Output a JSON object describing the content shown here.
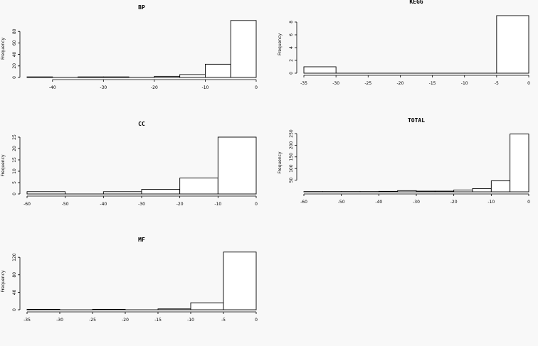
{
  "chart_data": [
    {
      "type": "bar",
      "title": "BP",
      "ylabel": "Frequency",
      "xlabel": "",
      "xlim": [
        -45,
        0
      ],
      "ylim": [
        0,
        100
      ],
      "xticks": [
        -40,
        -30,
        -20,
        -10,
        0
      ],
      "yticks": [
        0,
        20,
        40,
        60,
        80
      ],
      "bins": [
        {
          "from": -45,
          "to": -40,
          "count": 1
        },
        {
          "from": -40,
          "to": -35,
          "count": 0
        },
        {
          "from": -35,
          "to": -30,
          "count": 1
        },
        {
          "from": -30,
          "to": -25,
          "count": 1
        },
        {
          "from": -25,
          "to": -20,
          "count": 0
        },
        {
          "from": -20,
          "to": -15,
          "count": 2
        },
        {
          "from": -15,
          "to": -10,
          "count": 5
        },
        {
          "from": -10,
          "to": -5,
          "count": 23
        },
        {
          "from": -5,
          "to": 0,
          "count": 99
        }
      ]
    },
    {
      "type": "bar",
      "title": "KEGG",
      "ylabel": "Frequency",
      "xlabel": "",
      "xlim": [
        -35,
        0
      ],
      "ylim": [
        0,
        9
      ],
      "xticks": [
        -35,
        -30,
        -25,
        -20,
        -15,
        -10,
        -5,
        0
      ],
      "yticks": [
        0,
        2,
        4,
        6,
        8
      ],
      "bins": [
        {
          "from": -35,
          "to": -30,
          "count": 1
        },
        {
          "from": -30,
          "to": -25,
          "count": 0
        },
        {
          "from": -25,
          "to": -20,
          "count": 0
        },
        {
          "from": -20,
          "to": -15,
          "count": 0
        },
        {
          "from": -15,
          "to": -10,
          "count": 0
        },
        {
          "from": -10,
          "to": -5,
          "count": 0
        },
        {
          "from": -5,
          "to": 0,
          "count": 9
        }
      ]
    },
    {
      "type": "bar",
      "title": "CC",
      "ylabel": "Frequency",
      "xlabel": "",
      "xlim": [
        -60,
        0
      ],
      "ylim": [
        0,
        25
      ],
      "xticks": [
        -60,
        -50,
        -40,
        -30,
        -20,
        -10,
        0
      ],
      "yticks": [
        0,
        5,
        10,
        15,
        20,
        25
      ],
      "bins": [
        {
          "from": -60,
          "to": -50,
          "count": 1
        },
        {
          "from": -50,
          "to": -40,
          "count": 0
        },
        {
          "from": -40,
          "to": -30,
          "count": 1
        },
        {
          "from": -30,
          "to": -20,
          "count": 2
        },
        {
          "from": -20,
          "to": -10,
          "count": 7
        },
        {
          "from": -10,
          "to": 0,
          "count": 25
        }
      ]
    },
    {
      "type": "bar",
      "title": "TOTAL",
      "ylabel": "Frequency",
      "xlabel": "",
      "xlim": [
        -60,
        0
      ],
      "ylim": [
        0,
        250
      ],
      "xticks": [
        -60,
        -50,
        -40,
        -30,
        -20,
        -10,
        0
      ],
      "yticks": [
        50,
        100,
        150,
        200,
        250
      ],
      "bins": [
        {
          "from": -60,
          "to": -55,
          "count": 1
        },
        {
          "from": -55,
          "to": -50,
          "count": 1
        },
        {
          "from": -50,
          "to": -45,
          "count": 1
        },
        {
          "from": -45,
          "to": -40,
          "count": 1
        },
        {
          "from": -40,
          "to": -35,
          "count": 2
        },
        {
          "from": -35,
          "to": -30,
          "count": 5
        },
        {
          "from": -30,
          "to": -25,
          "count": 3
        },
        {
          "from": -25,
          "to": -20,
          "count": 3
        },
        {
          "from": -20,
          "to": -15,
          "count": 8
        },
        {
          "from": -15,
          "to": -10,
          "count": 14
        },
        {
          "from": -10,
          "to": -5,
          "count": 47
        },
        {
          "from": -5,
          "to": 0,
          "count": 248
        }
      ]
    },
    {
      "type": "bar",
      "title": "MF",
      "ylabel": "Frequency",
      "xlabel": "",
      "xlim": [
        -35,
        0
      ],
      "ylim": [
        0,
        130
      ],
      "xticks": [
        -35,
        -30,
        -25,
        -20,
        -15,
        -10,
        -5,
        0
      ],
      "yticks": [
        0,
        40,
        80,
        120
      ],
      "bins": [
        {
          "from": -35,
          "to": -30,
          "count": 1
        },
        {
          "from": -30,
          "to": -25,
          "count": 0
        },
        {
          "from": -25,
          "to": -20,
          "count": 1
        },
        {
          "from": -20,
          "to": -15,
          "count": 0
        },
        {
          "from": -15,
          "to": -10,
          "count": 2
        },
        {
          "from": -10,
          "to": -5,
          "count": 16
        },
        {
          "from": -5,
          "to": 0,
          "count": 132
        }
      ]
    }
  ]
}
